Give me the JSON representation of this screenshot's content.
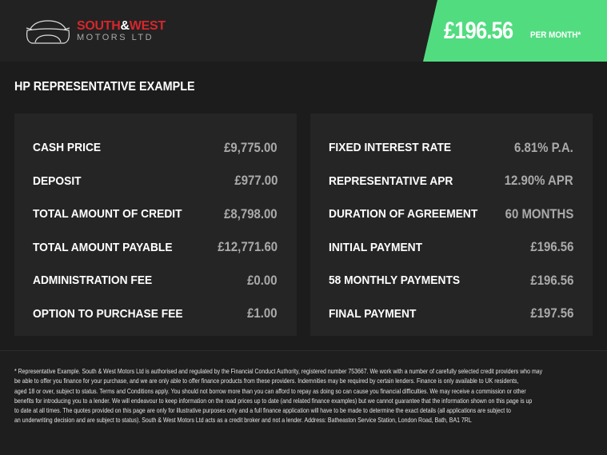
{
  "header": {
    "logo": {
      "line1_a": "SOUTH",
      "line1_amp": "&",
      "line1_b": "WEST",
      "line2": "MOTORS LTD"
    },
    "price": "£196.56",
    "per_month": "PER MONTH*",
    "accent": "#52dc80",
    "brand_red": "#d8262c"
  },
  "title": "HP REPRESENTATIVE EXAMPLE",
  "left": [
    {
      "label": "CASH PRICE",
      "value": "£9,775.00"
    },
    {
      "label": "DEPOSIT",
      "value": "£977.00"
    },
    {
      "label": "TOTAL AMOUNT OF CREDIT",
      "value": "£8,798.00"
    },
    {
      "label": "TOTAL AMOUNT PAYABLE",
      "value": "£12,771.60"
    },
    {
      "label": "ADMINISTRATION FEE",
      "value": "£0.00"
    },
    {
      "label": "OPTION TO PURCHASE FEE",
      "value": "£1.00"
    }
  ],
  "right": [
    {
      "label": "FIXED INTEREST RATE",
      "value": "6.81% P.A."
    },
    {
      "label": "REPRESENTATIVE APR",
      "value": "12.90% APR"
    },
    {
      "label": "DURATION OF AGREEMENT",
      "value": "60 MONTHS"
    },
    {
      "label": "INITIAL PAYMENT",
      "value": "£196.56"
    },
    {
      "label": "58 MONTHLY PAYMENTS",
      "value": "£196.56"
    },
    {
      "label": "FINAL PAYMENT",
      "value": "£197.56"
    }
  ],
  "footer": [
    "* Representative Example. South & West Motors Ltd is authorised and regulated by the Financial Conduct Authority, registered number 753667. We work with a number of carefully selected credit providers who may",
    "be able to offer you finance for your purchase, and we are only able to offer finance products from these providers. Indemnities may be required by certain lenders. Finance is only available to UK residents,",
    "aged 18 or over, subject to status. Terms and Conditions apply. You should not borrow more than you can afford to repay as doing so can cause you financial difficulties. We may receive a commission or other",
    "benefits for introducing you to a lender. We will endeavour to keep information on the road prices up to date (and related finance examples) but we cannot guarantee that the information shown on this page is up",
    "to date at all times. The quotes provided on this page are only for illustrative purposes only and a full finance application will have to be made to determine the exact details (all applications are subject to",
    "an underwriting decision and are subject to status). South & West Motors Ltd acts as a credit broker and not a lender. Address: Batheaston Service Station, London Road, Bath, BA1 7RL"
  ]
}
